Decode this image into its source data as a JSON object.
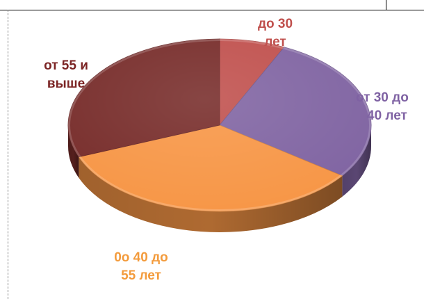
{
  "chart_data": {
    "type": "pie",
    "title": "",
    "slices": [
      {
        "label": "до 30 лет",
        "value": 7,
        "color": "#c0504d"
      },
      {
        "label": "от 30 до 40 лет",
        "value": 28,
        "color": "#8064a2"
      },
      {
        "label": "0о 40 до 55 лет",
        "value": 34,
        "color": "#f79646"
      },
      {
        "label": "от 55 и выше",
        "value": 31,
        "color": "#772c2a"
      }
    ],
    "label_lines": [
      [
        "до 30",
        "лет"
      ],
      [
        "от 30 до",
        "40 лет"
      ],
      [
        "0о 40 до",
        "55 лет"
      ],
      [
        "от 55 и",
        "выше"
      ]
    ],
    "style": "3d-pie",
    "legend": "none"
  }
}
